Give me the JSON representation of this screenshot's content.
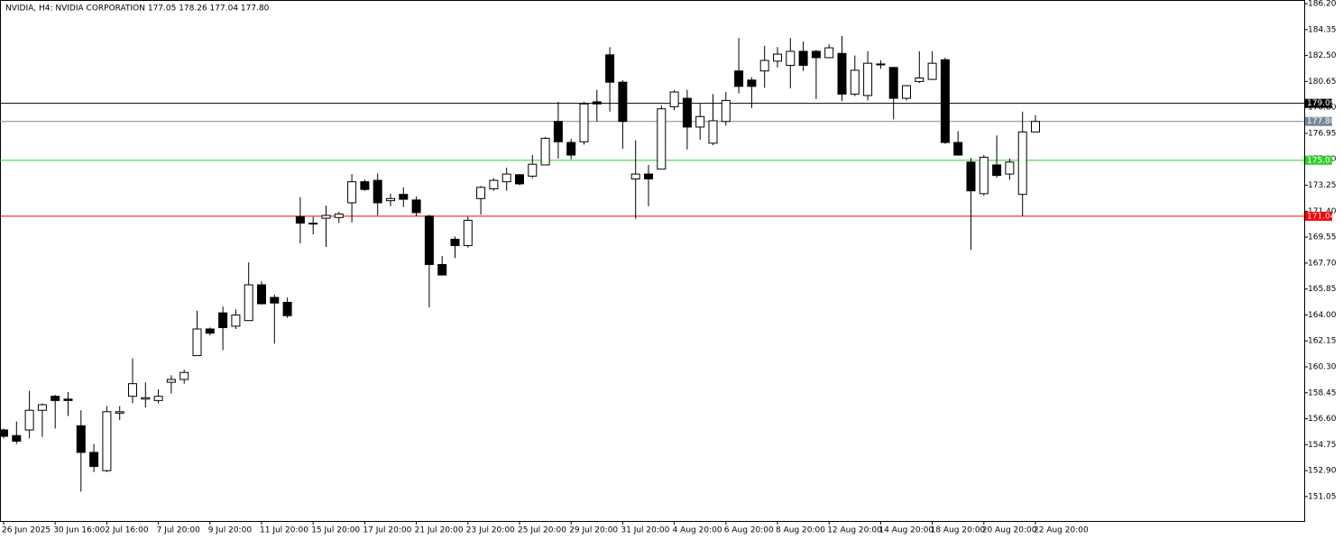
{
  "chart_data": {
    "type": "candlestick",
    "title": "NVIDIA, H4:  NVIDIA CORPORATION  177.05 178.26 177.04 177.80",
    "up_color": "#ffffff",
    "down_color": "#000000",
    "wick_color": "#000000",
    "categories": [
      "26 Jun 2025",
      null,
      null,
      null,
      "30 Jun 16:00",
      null,
      null,
      null,
      "2 Jul 16:00",
      null,
      null,
      null,
      "7 Jul 20:00",
      null,
      null,
      null,
      "9 Jul 20:00",
      null,
      null,
      null,
      "11 Jul 20:00",
      null,
      null,
      null,
      "15 Jul 20:00",
      null,
      null,
      null,
      "17 Jul 20:00",
      null,
      null,
      null,
      "21 Jul 20:00",
      null,
      null,
      null,
      "23 Jul 20:00",
      null,
      null,
      null,
      "25 Jul 20:00",
      null,
      null,
      null,
      "29 Jul 20:00",
      null,
      null,
      null,
      "31 Jul 20:00",
      null,
      null,
      null,
      "4 Aug 20:00",
      null,
      null,
      null,
      "6 Aug 20:00",
      null,
      null,
      null,
      "8 Aug 20:00",
      null,
      null,
      null,
      "12 Aug 20:00",
      null,
      null,
      null,
      "14 Aug 20:00",
      null,
      null,
      null,
      "18 Aug 20:00",
      null,
      null,
      null,
      "20 Aug 20:00",
      null,
      null,
      null,
      "22 Aug 20:00"
    ],
    "open": [
      155.8,
      155.4,
      155.8,
      157.2,
      158.2,
      158.0,
      156.1,
      154.2,
      152.9,
      157.0,
      158.2,
      158.0,
      157.9,
      159.2,
      159.4,
      161.1,
      163.0,
      164.15,
      163.2,
      163.6,
      166.15,
      165.25,
      164.9,
      171.0,
      170.5,
      170.9,
      170.95,
      172.0,
      173.5,
      173.6,
      172.15,
      172.6,
      172.2,
      171.05,
      167.6,
      169.4,
      168.95,
      172.3,
      173.0,
      173.5,
      174.0,
      173.9,
      174.7,
      177.8,
      176.3,
      176.35,
      179.2,
      182.55,
      180.6,
      173.7,
      174.05,
      174.4,
      178.85,
      179.45,
      177.4,
      176.25,
      177.8,
      181.4,
      180.75,
      181.4,
      182.1,
      181.8,
      182.8,
      182.8,
      182.35,
      182.65,
      179.75,
      179.65,
      181.9,
      181.65,
      179.45,
      180.65,
      180.8,
      182.2,
      176.3,
      174.9,
      172.65,
      174.7,
      174.05,
      172.6,
      177.05
    ],
    "high": [
      155.9,
      156.4,
      158.6,
      157.7,
      158.3,
      158.5,
      157.2,
      154.8,
      157.5,
      157.5,
      160.9,
      159.2,
      158.7,
      159.7,
      160.1,
      164.3,
      163.1,
      164.6,
      164.4,
      167.75,
      166.4,
      165.45,
      165.25,
      172.4,
      171.0,
      171.8,
      171.35,
      174.05,
      173.65,
      174.1,
      172.65,
      173.1,
      172.45,
      171.15,
      168.2,
      169.6,
      171.0,
      173.2,
      173.75,
      174.5,
      174.05,
      175.4,
      176.7,
      179.2,
      176.55,
      179.2,
      180.05,
      183.1,
      180.75,
      176.45,
      174.7,
      178.95,
      180.05,
      180.05,
      179.05,
      179.75,
      179.9,
      183.75,
      180.95,
      183.2,
      183.1,
      183.75,
      183.5,
      182.9,
      183.3,
      183.9,
      182.5,
      182.8,
      182.15,
      181.65,
      180.4,
      182.8,
      182.8,
      182.35,
      177.1,
      175.2,
      175.4,
      176.8,
      175.15,
      178.5,
      178.26
    ],
    "low": [
      155.2,
      154.8,
      155.2,
      155.3,
      155.9,
      156.8,
      151.4,
      152.8,
      152.8,
      156.5,
      157.7,
      157.4,
      157.7,
      158.4,
      159.1,
      161.1,
      162.55,
      161.5,
      163.0,
      163.6,
      164.75,
      161.95,
      163.8,
      169.1,
      169.75,
      168.85,
      170.55,
      170.6,
      172.85,
      171.1,
      171.75,
      171.7,
      171.05,
      164.55,
      166.85,
      168.05,
      168.8,
      171.15,
      172.85,
      172.85,
      173.25,
      173.75,
      174.7,
      175.15,
      175.1,
      176.15,
      177.8,
      178.5,
      175.85,
      170.85,
      171.75,
      174.4,
      178.6,
      175.8,
      176.5,
      176.1,
      177.5,
      179.8,
      178.75,
      180.2,
      181.65,
      180.15,
      181.4,
      179.4,
      182.3,
      179.25,
      179.6,
      179.3,
      181.55,
      177.95,
      179.3,
      180.55,
      180.75,
      176.2,
      175.4,
      168.65,
      172.5,
      173.8,
      173.65,
      171.05,
      177.04
    ],
    "close": [
      155.35,
      155.0,
      157.2,
      157.6,
      157.9,
      157.9,
      154.2,
      153.2,
      157.1,
      157.1,
      159.1,
      158.1,
      158.2,
      159.4,
      159.9,
      163.0,
      162.7,
      163.1,
      164.0,
      166.15,
      164.8,
      164.85,
      163.95,
      170.55,
      170.55,
      171.1,
      171.2,
      173.5,
      172.95,
      172.0,
      172.3,
      172.25,
      171.3,
      167.6,
      166.85,
      168.95,
      170.75,
      173.1,
      173.6,
      174.05,
      173.35,
      174.75,
      176.6,
      176.35,
      175.4,
      179.05,
      179.05,
      180.6,
      177.8,
      174.05,
      173.7,
      178.7,
      179.9,
      177.4,
      178.15,
      177.85,
      179.3,
      180.3,
      180.3,
      182.15,
      182.6,
      182.8,
      181.8,
      182.35,
      183.05,
      179.75,
      181.45,
      181.95,
      181.85,
      179.45,
      180.35,
      180.9,
      181.95,
      176.3,
      175.4,
      172.85,
      175.25,
      173.95,
      174.9,
      177.05,
      177.8
    ],
    "ylim": [
      149.31,
      186.46
    ],
    "yticks": [
      {
        "value": 186.2,
        "label": "186.20"
      },
      {
        "value": 184.35,
        "label": "184.35"
      },
      {
        "value": 182.5,
        "label": "182.50"
      },
      {
        "value": 180.65,
        "label": "180.65"
      },
      {
        "value": 178.8,
        "label": "178.80"
      },
      {
        "value": 176.95,
        "label": "176.95"
      },
      {
        "value": 175.1,
        "label": "175.10"
      },
      {
        "value": 173.25,
        "label": "173.25"
      },
      {
        "value": 171.4,
        "label": "171.40"
      },
      {
        "value": 169.55,
        "label": "169.55"
      },
      {
        "value": 167.7,
        "label": "167.70"
      },
      {
        "value": 165.85,
        "label": "165.85"
      },
      {
        "value": 164,
        "label": "164.00"
      },
      {
        "value": 162.15,
        "label": "162.15"
      },
      {
        "value": 160.3,
        "label": "160.30"
      },
      {
        "value": 158.45,
        "label": "158.45"
      },
      {
        "value": 156.6,
        "label": "156.60"
      },
      {
        "value": 154.75,
        "label": "154.75"
      },
      {
        "value": 152.9,
        "label": "152.90"
      },
      {
        "value": 151.05,
        "label": "151.05"
      }
    ],
    "hlines": [
      {
        "value": 179.09,
        "label": "179.09",
        "color": "#000000"
      },
      {
        "value": 177.8,
        "label": "177.80",
        "color": "#778899"
      },
      {
        "value": 175.03,
        "label": "175.03",
        "color": "#32cd32"
      },
      {
        "value": 171.04,
        "label": "171.04",
        "color": "#ff0000"
      }
    ]
  }
}
